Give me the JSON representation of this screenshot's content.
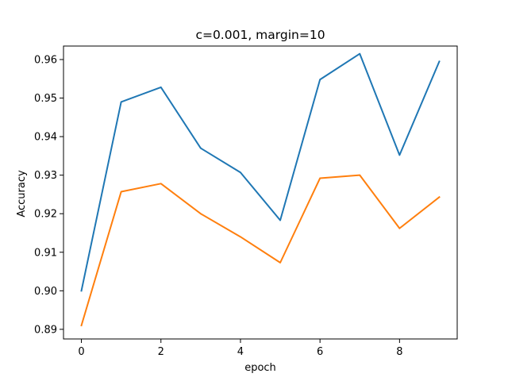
{
  "chart_data": {
    "type": "line",
    "title": "c=0.001, margin=10",
    "xlabel": "epoch",
    "ylabel": "Accuracy",
    "x": [
      0,
      1,
      2,
      3,
      4,
      5,
      6,
      7,
      8,
      9
    ],
    "xlim": [
      -0.45,
      9.45
    ],
    "ylim": [
      0.8875,
      0.9635
    ],
    "xticks": [
      0,
      2,
      4,
      6,
      8
    ],
    "xtick_labels": [
      "0",
      "2",
      "4",
      "6",
      "8"
    ],
    "yticks": [
      0.89,
      0.9,
      0.91,
      0.92,
      0.93,
      0.94,
      0.95,
      0.96
    ],
    "ytick_labels": [
      "0.89",
      "0.90",
      "0.91",
      "0.92",
      "0.93",
      "0.94",
      "0.95",
      "0.96"
    ],
    "grid": false,
    "legend": "none",
    "series": [
      {
        "color": "#1f77b4",
        "values": [
          0.9,
          0.949,
          0.9528,
          0.937,
          0.9307,
          0.9183,
          0.9548,
          0.9615,
          0.9352,
          0.9595
        ]
      },
      {
        "color": "#ff7f0e",
        "values": [
          0.891,
          0.9257,
          0.9278,
          0.92,
          0.914,
          0.9073,
          0.9292,
          0.93,
          0.9162,
          0.9243
        ]
      }
    ]
  }
}
